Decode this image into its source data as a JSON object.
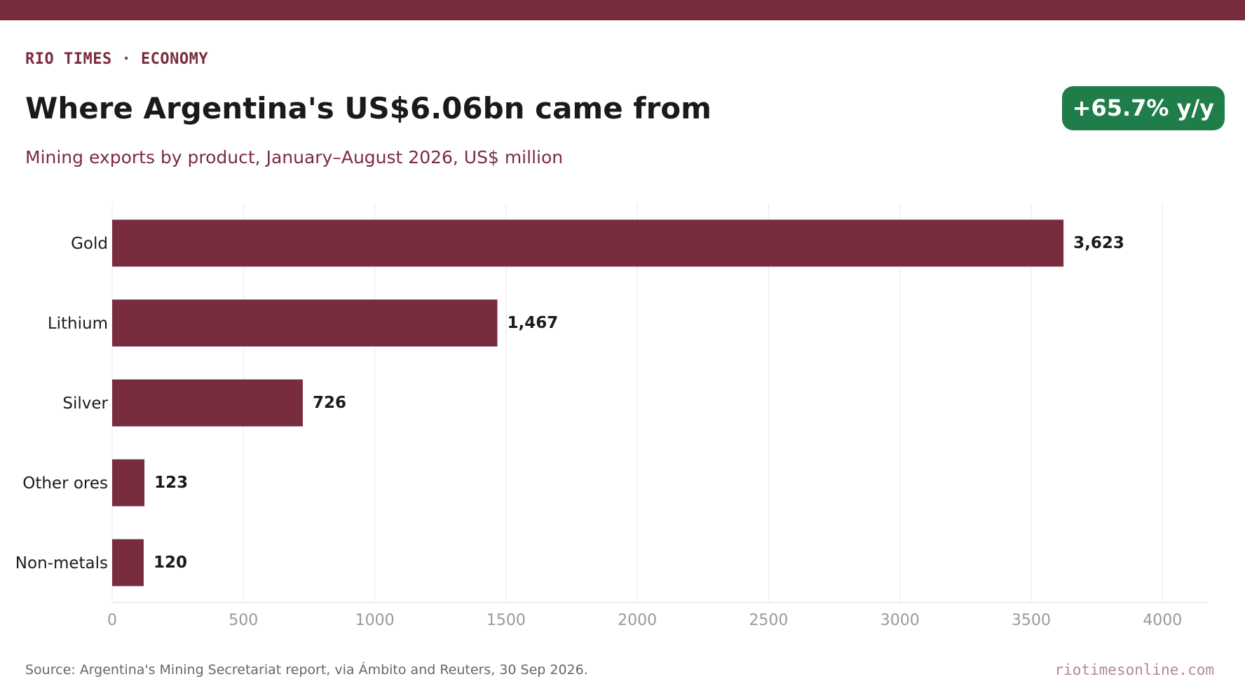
{
  "header": {
    "kicker": "RIO TIMES · ECONOMY",
    "title": "Where Argentina's US$6.06bn came from",
    "subtitle": "Mining exports by product, January–August 2026, US$ million",
    "badge": "+65.7% y/y"
  },
  "footer": {
    "source": "Source: Argentina's Mining Secretariat report, via Ámbito and Reuters, 30 Sep 2026.",
    "site": "riotimesonline.com"
  },
  "colors": {
    "brand": "#7a2c3f",
    "badge": "#1e7d49",
    "value_label": "#1a1a1a",
    "tick_label": "#9a9a9a",
    "grid": "#e8e8e8"
  },
  "chart_data": {
    "type": "bar",
    "orientation": "horizontal",
    "categories": [
      "Gold",
      "Lithium",
      "Silver",
      "Other ores",
      "Non-metals"
    ],
    "values": [
      3623,
      1467,
      726,
      123,
      120
    ],
    "value_labels": [
      "3,623",
      "1,467",
      "726",
      "123",
      "120"
    ],
    "xlim": [
      0,
      4170
    ],
    "xticks": [
      0,
      500,
      1000,
      1500,
      2000,
      2500,
      3000,
      3500,
      4000
    ],
    "xlabel": "",
    "ylabel": "",
    "grid": "vertical"
  }
}
